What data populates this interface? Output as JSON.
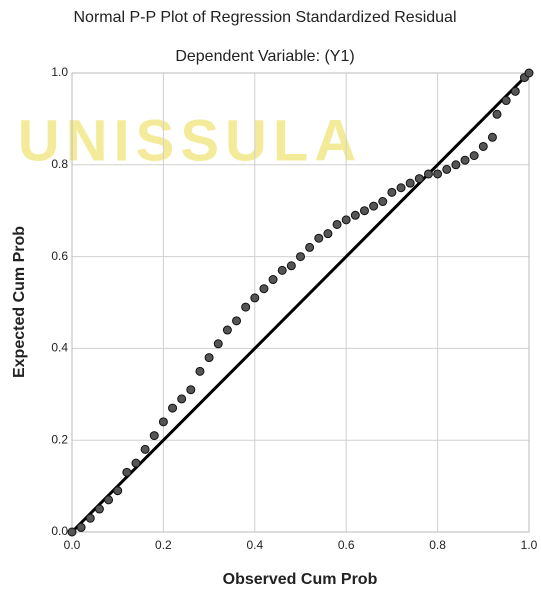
{
  "chart_data": {
    "type": "scatter",
    "title": "Normal P-P Plot of Regression Standardized Residual",
    "subtitle": "Dependent Variable: (Y1)",
    "x_label": "Observed Cum Prob",
    "y_label": "Expected Cum Prob",
    "watermark": "UNISSULA",
    "color": "#555555",
    "reference_line": true,
    "grid": true,
    "x": [
      0,
      0.02,
      0.04,
      0.06,
      0.08,
      0.1,
      0.12,
      0.14,
      0.16,
      0.18,
      0.2,
      0.22,
      0.24,
      0.26,
      0.28,
      0.3,
      0.32,
      0.34,
      0.36,
      0.38,
      0.4,
      0.42,
      0.44,
      0.46,
      0.48,
      0.5,
      0.52,
      0.54,
      0.56,
      0.58,
      0.6,
      0.62,
      0.64,
      0.66,
      0.68,
      0.7,
      0.72,
      0.74,
      0.76,
      0.78,
      0.8,
      0.82,
      0.84,
      0.86,
      0.88,
      0.9,
      0.92,
      0.93,
      0.95,
      0.97,
      0.99,
      1
    ],
    "values": [
      0,
      0.01,
      0.03,
      0.05,
      0.07,
      0.09,
      0.13,
      0.15,
      0.18,
      0.21,
      0.24,
      0.27,
      0.29,
      0.31,
      0.35,
      0.38,
      0.41,
      0.44,
      0.46,
      0.49,
      0.51,
      0.53,
      0.55,
      0.57,
      0.58,
      0.6,
      0.62,
      0.64,
      0.65,
      0.67,
      0.68,
      0.69,
      0.7,
      0.71,
      0.72,
      0.74,
      0.75,
      0.76,
      0.77,
      0.78,
      0.78,
      0.79,
      0.8,
      0.81,
      0.82,
      0.84,
      0.86,
      0.91,
      0.94,
      0.96,
      0.99,
      1
    ],
    "xlim": [
      0,
      1
    ],
    "ylim": [
      0,
      1
    ],
    "xticks": [
      {
        "value": 0,
        "label": "0.0"
      },
      0.2,
      0.4,
      0.6,
      0.8,
      {
        "value": 1,
        "label": "1.0"
      }
    ],
    "yticks": [
      {
        "value": 0,
        "label": "0.0"
      },
      0.2,
      0.4,
      0.6,
      0.8,
      {
        "value": 1,
        "label": "1.0"
      }
    ]
  }
}
